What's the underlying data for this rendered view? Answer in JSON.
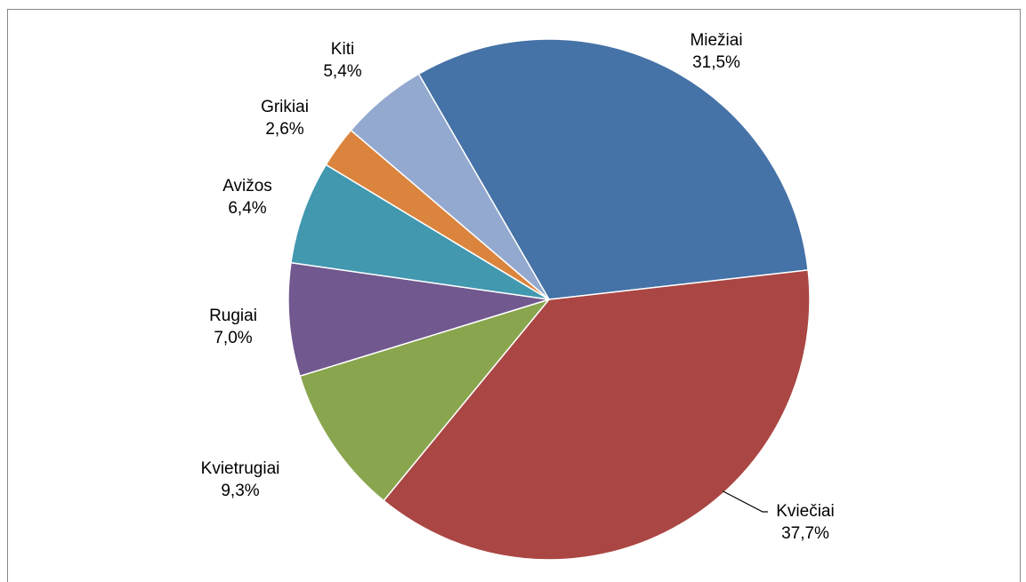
{
  "chart_data": {
    "type": "pie",
    "categories": [
      "Miežiai",
      "Kviečiai",
      "Kvietrugiai",
      "Rugiai",
      "Avižos",
      "Grikiai",
      "Kiti"
    ],
    "values": [
      31.5,
      37.7,
      9.3,
      7.0,
      6.4,
      2.6,
      5.4
    ],
    "value_labels": [
      "31,5%",
      "37,7%",
      "9,3%",
      "7,0%",
      "6,4%",
      "2,6%",
      "5,4%"
    ],
    "colors": [
      "#4572a7",
      "#aa4643",
      "#89a54e",
      "#71588f",
      "#4198af",
      "#db843d",
      "#93a9cf"
    ]
  }
}
